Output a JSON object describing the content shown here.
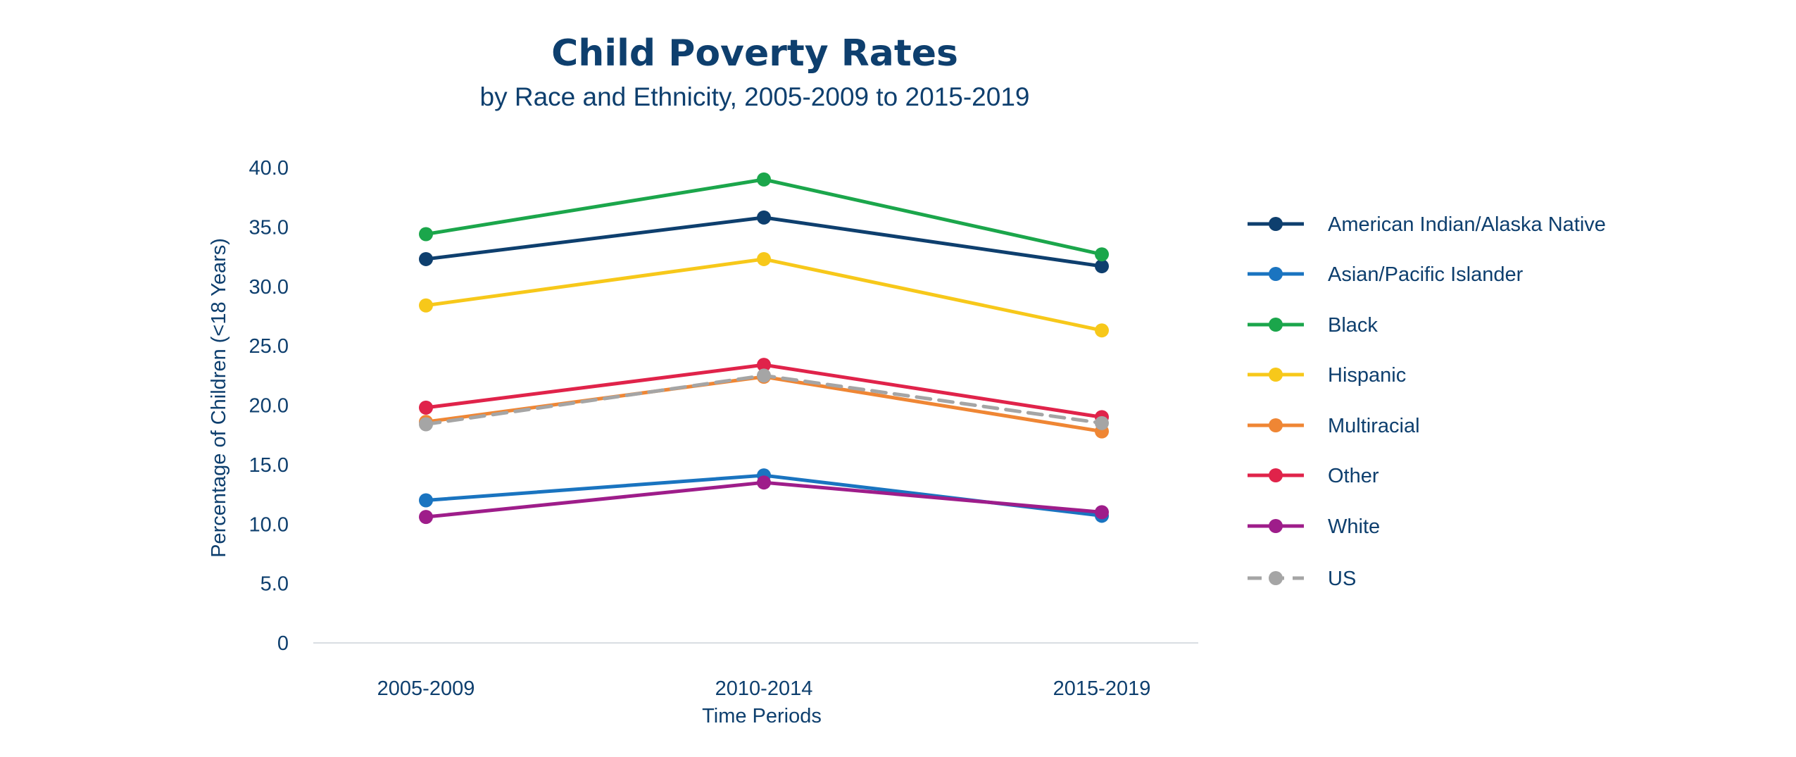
{
  "chart_data": {
    "type": "line",
    "title": "Child Poverty Rates",
    "subtitle": "by Race and Ethnicity, 2005-2009 to 2015-2019",
    "xlabel": "Time Periods",
    "ylabel": "Percentage of Children (<18 Years)",
    "categories": [
      "2005-2009",
      "2010-2014",
      "2015-2019"
    ],
    "ylim": [
      0,
      40
    ],
    "yticks": [
      0,
      5,
      10,
      15,
      20,
      25,
      30,
      35,
      40
    ],
    "ytick_labels": [
      "0",
      "5.0",
      "10.0",
      "15.0",
      "20.0",
      "25.0",
      "30.0",
      "35.0",
      "40.0"
    ],
    "grid": false,
    "legend_position": "right",
    "series": [
      {
        "name": "American Indian/Alaska Native",
        "values": [
          32.3,
          35.8,
          31.7
        ],
        "color": "#0e3f6e",
        "dashed": false
      },
      {
        "name": "Asian/Pacific Islander",
        "values": [
          12.0,
          14.1,
          10.7
        ],
        "color": "#1a74c0",
        "dashed": false
      },
      {
        "name": "Black",
        "values": [
          34.4,
          39.0,
          32.7
        ],
        "color": "#1ba64b",
        "dashed": false
      },
      {
        "name": "Hispanic",
        "values": [
          28.4,
          32.3,
          26.3
        ],
        "color": "#f7c81a",
        "dashed": false
      },
      {
        "name": "Multiracial",
        "values": [
          18.6,
          22.4,
          17.8
        ],
        "color": "#ef8634",
        "dashed": false
      },
      {
        "name": "Other",
        "values": [
          19.8,
          23.4,
          19.0
        ],
        "color": "#e0234a",
        "dashed": false
      },
      {
        "name": "White",
        "values": [
          10.6,
          13.5,
          11.0
        ],
        "color": "#9e1d8a",
        "dashed": false
      },
      {
        "name": "US",
        "values": [
          18.4,
          22.5,
          18.5
        ],
        "color": "#a5a5a5",
        "dashed": true
      }
    ]
  }
}
